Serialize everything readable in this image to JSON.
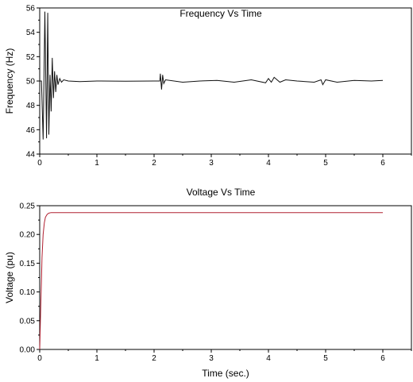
{
  "chart_data": [
    {
      "type": "line",
      "title": "Frequency Vs Time",
      "xlabel": "",
      "ylabel": "Frequency (Hz)",
      "xlim": [
        0,
        6.5
      ],
      "ylim": [
        44,
        56
      ],
      "xticks": [
        "0",
        "1",
        "2",
        "3",
        "4",
        "5",
        "6"
      ],
      "yticks": [
        "44",
        "46",
        "48",
        "50",
        "52",
        "54",
        "56"
      ],
      "grid": false,
      "color": "#111111",
      "series": [
        {
          "x": [
            0,
            0.03,
            0.06,
            0.09,
            0.12,
            0.14,
            0.16,
            0.18,
            0.2,
            0.22,
            0.24,
            0.26,
            0.28,
            0.3,
            0.32,
            0.35,
            0.38,
            0.42,
            0.5,
            0.7,
            1.0,
            1.5,
            2.0,
            2.1,
            2.11,
            2.13,
            2.15,
            2.17,
            2.2,
            2.5,
            2.8,
            3.1,
            3.4,
            3.7,
            3.95,
            4.0,
            4.05,
            4.1,
            4.2,
            4.3,
            4.5,
            4.8,
            4.92,
            4.95,
            5.0,
            5.2,
            5.5,
            5.8,
            6.0
          ],
          "y": [
            50,
            50,
            45.2,
            55.7,
            45.3,
            55.6,
            45.6,
            50.5,
            47.5,
            51.9,
            48.6,
            50.8,
            49.1,
            50.5,
            49.7,
            50.2,
            49.9,
            50.1,
            50.0,
            49.95,
            50.0,
            49.98,
            50.0,
            50.0,
            50.6,
            49.3,
            50.5,
            49.8,
            50.1,
            49.9,
            50.0,
            50.05,
            49.9,
            50.1,
            49.85,
            50.2,
            49.9,
            50.3,
            49.9,
            50.1,
            50.0,
            49.9,
            50.1,
            49.7,
            50.1,
            49.9,
            50.05,
            50.0,
            50.05
          ]
        }
      ]
    },
    {
      "type": "line",
      "title": "Voltage Vs Time",
      "xlabel": "Time (sec.)",
      "ylabel": "Voltage (pu)",
      "xlim": [
        0,
        6.5
      ],
      "ylim": [
        0,
        0.25
      ],
      "xticks": [
        "0",
        "1",
        "2",
        "3",
        "4",
        "5",
        "6"
      ],
      "yticks": [
        "0.00",
        "0.05",
        "0.10",
        "0.15",
        "0.20",
        "0.25"
      ],
      "grid": false,
      "color": "#b02030",
      "series": [
        {
          "x": [
            0,
            0.01,
            0.02,
            0.03,
            0.04,
            0.05,
            0.06,
            0.08,
            0.1,
            0.13,
            0.16,
            0.2,
            0.3,
            0.5,
            1.0,
            2.0,
            3.0,
            4.0,
            5.0,
            6.0
          ],
          "y": [
            0,
            0.04,
            0.08,
            0.12,
            0.16,
            0.18,
            0.2,
            0.22,
            0.23,
            0.235,
            0.237,
            0.238,
            0.238,
            0.238,
            0.238,
            0.238,
            0.238,
            0.238,
            0.238,
            0.238
          ]
        }
      ]
    }
  ]
}
